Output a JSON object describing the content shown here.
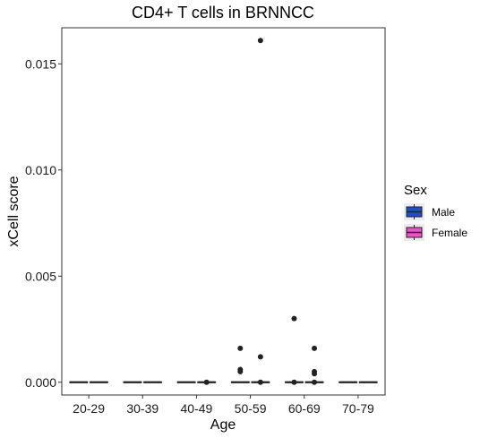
{
  "chart_data": {
    "type": "box",
    "title": "CD4+ T cells in BRNNCC",
    "xlabel": "Age",
    "ylabel": "xCell score",
    "categories": [
      "20-29",
      "30-39",
      "40-49",
      "50-59",
      "60-69",
      "70-79"
    ],
    "ylim": [
      -0.0006,
      0.0167
    ],
    "yticks": [
      0.0,
      0.005,
      0.01,
      0.015
    ],
    "ytick_labels": [
      "0.000",
      "0.005",
      "0.010",
      "0.015"
    ],
    "grid": false,
    "legend": {
      "title": "Sex",
      "position": "right",
      "entries": [
        {
          "name": "Male",
          "color": "#1f4fd1"
        },
        {
          "name": "Female",
          "color": "#f04fd1"
        }
      ]
    },
    "series": [
      {
        "name": "Male",
        "color": "#1f4fd1",
        "boxes": [
          {
            "category": "20-29",
            "q1": 0,
            "median": 0,
            "q3": 0,
            "whisker_low": 0,
            "whisker_high": 0,
            "outliers": []
          },
          {
            "category": "30-39",
            "q1": 0,
            "median": 0,
            "q3": 0,
            "whisker_low": 0,
            "whisker_high": 0,
            "outliers": []
          },
          {
            "category": "40-49",
            "q1": 0,
            "median": 0,
            "q3": 0,
            "whisker_low": 0,
            "whisker_high": 0,
            "outliers": []
          },
          {
            "category": "50-59",
            "q1": 0,
            "median": 0,
            "q3": 0,
            "whisker_low": 0,
            "whisker_high": 0,
            "outliers": [
              0.0016,
              0.0006,
              0.0005
            ]
          },
          {
            "category": "60-69",
            "q1": 0,
            "median": 0,
            "q3": 0,
            "whisker_low": 0,
            "whisker_high": 0,
            "outliers": [
              0.003,
              0.0
            ]
          },
          {
            "category": "70-79",
            "q1": 0,
            "median": 0,
            "q3": 0,
            "whisker_low": 0,
            "whisker_high": 0,
            "outliers": []
          }
        ]
      },
      {
        "name": "Female",
        "color": "#f04fd1",
        "boxes": [
          {
            "category": "20-29",
            "q1": 0,
            "median": 0,
            "q3": 0,
            "whisker_low": 0,
            "whisker_high": 0,
            "outliers": []
          },
          {
            "category": "30-39",
            "q1": 0,
            "median": 0,
            "q3": 0,
            "whisker_low": 0,
            "whisker_high": 0,
            "outliers": []
          },
          {
            "category": "40-49",
            "q1": 0,
            "median": 0,
            "q3": 0,
            "whisker_low": 0,
            "whisker_high": 0,
            "outliers": [
              0.0
            ]
          },
          {
            "category": "50-59",
            "q1": 0,
            "median": 0,
            "q3": 0,
            "whisker_low": 0,
            "whisker_high": 0,
            "outliers": [
              0.0161,
              0.0012,
              0.0
            ]
          },
          {
            "category": "60-69",
            "q1": 0,
            "median": 0,
            "q3": 0,
            "whisker_low": 0,
            "whisker_high": 0,
            "outliers": [
              0.0016,
              0.0005,
              0.0004,
              0.0
            ]
          },
          {
            "category": "70-79",
            "q1": 0,
            "median": 0,
            "q3": 0,
            "whisker_low": 0,
            "whisker_high": 0,
            "outliers": []
          }
        ]
      }
    ]
  }
}
